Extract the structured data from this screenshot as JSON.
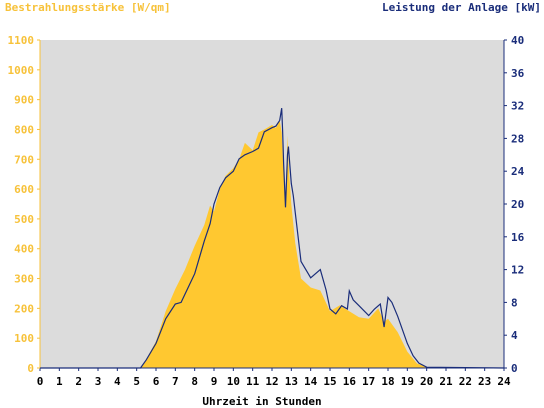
{
  "chart_data": {
    "type": "area",
    "left_axis_title": "Bestrahlungsstärke [W/qm]",
    "right_axis_title": "Leistung der Anlage [kW]",
    "xlabel": "Uhrzeit in Stunden",
    "x_range": [
      0,
      24
    ],
    "y_left_range": [
      0,
      1100
    ],
    "y_right_range": [
      0,
      40
    ],
    "x_ticks": [
      "0",
      "1",
      "2",
      "3",
      "4",
      "5",
      "6",
      "7",
      "8",
      "9",
      "10",
      "11",
      "12",
      "13",
      "14",
      "15",
      "16",
      "17",
      "18",
      "19",
      "20",
      "21",
      "22",
      "23",
      "24"
    ],
    "y_left_ticks": [
      "0",
      "100",
      "200",
      "300",
      "400",
      "500",
      "600",
      "700",
      "800",
      "900",
      "1000",
      "1100"
    ],
    "y_right_ticks": [
      "0",
      "4",
      "8",
      "12",
      "16",
      "20",
      "24",
      "28",
      "32",
      "36",
      "40"
    ],
    "grid": false,
    "series": [
      {
        "name": "Bestrahlungsstärke",
        "axis": "left",
        "style": "filled-area",
        "color": "#ffc830",
        "x": [
          0,
          5.2,
          5.5,
          6,
          6.5,
          7,
          7.5,
          8,
          8.5,
          8.8,
          9,
          9.3,
          9.6,
          10,
          10.3,
          10.6,
          11,
          11.3,
          11.6,
          12,
          12.2,
          12.4,
          12.5,
          12.55,
          12.7,
          12.8,
          12.85,
          13,
          13.2,
          13.5,
          14,
          14.5,
          15,
          15.5,
          16,
          16.5,
          17,
          17.5,
          17.8,
          18,
          18.5,
          19,
          19.5,
          20,
          24
        ],
        "y": [
          0,
          0,
          30,
          90,
          190,
          265,
          330,
          410,
          480,
          545,
          525,
          600,
          645,
          670,
          700,
          755,
          730,
          790,
          800,
          815,
          805,
          830,
          790,
          720,
          560,
          780,
          690,
          550,
          420,
          300,
          270,
          260,
          190,
          210,
          190,
          170,
          165,
          200,
          155,
          165,
          120,
          55,
          15,
          3,
          0
        ]
      },
      {
        "name": "Leistung der Anlage",
        "axis": "right",
        "style": "line",
        "color": "#1a2d7a",
        "x": [
          0,
          5.2,
          5.5,
          6,
          6.5,
          7,
          7.3,
          7.6,
          8,
          8.5,
          8.8,
          9,
          9.3,
          9.6,
          10,
          10.3,
          10.6,
          11,
          11.3,
          11.6,
          12,
          12.2,
          12.4,
          12.5,
          12.55,
          12.6,
          12.7,
          12.8,
          12.85,
          13,
          13.1,
          13.2,
          13.5,
          14,
          14.5,
          14.8,
          15,
          15.3,
          15.6,
          15.9,
          16,
          16.2,
          16.5,
          17,
          17.3,
          17.6,
          17.8,
          18,
          18.2,
          18.5,
          19,
          19.3,
          19.6,
          20,
          24
        ],
        "y": [
          0,
          0,
          1,
          3,
          6,
          7.8,
          8,
          9.5,
          11.5,
          15.5,
          17.6,
          20,
          22,
          23.2,
          24,
          25.5,
          26,
          26.4,
          26.8,
          28.8,
          29.3,
          29.5,
          30.2,
          31.7,
          29,
          25,
          19.6,
          26,
          27,
          22.5,
          21,
          19,
          13,
          11,
          12,
          9.5,
          7.2,
          6.6,
          7.6,
          7.2,
          9.4,
          8.3,
          7.6,
          6.4,
          7.2,
          7.8,
          5,
          8.6,
          8,
          6.3,
          3,
          1.5,
          0.6,
          0.1,
          0
        ]
      }
    ]
  }
}
